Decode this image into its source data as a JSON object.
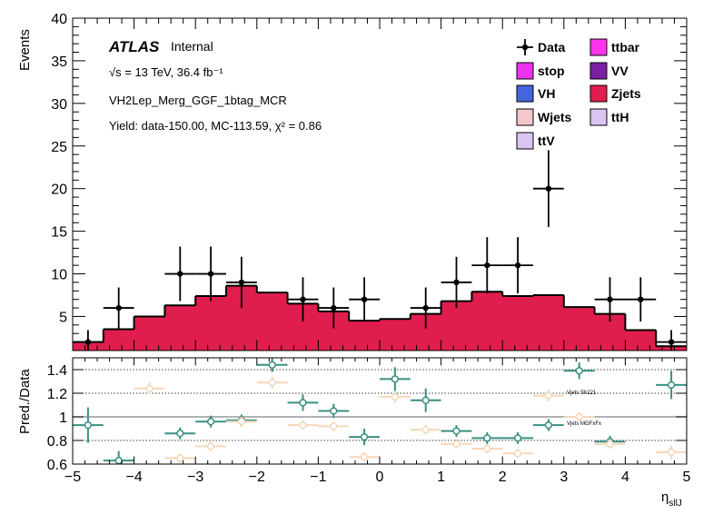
{
  "chart_data": [
    {
      "panel": "main",
      "type": "histogram",
      "ylabel": "Events",
      "ylim": [
        1,
        40
      ],
      "yticks": [
        5,
        10,
        15,
        20,
        25,
        30,
        35,
        40
      ],
      "xlim": [
        -5,
        5
      ],
      "bin_edges": [
        -5,
        -4.5,
        -4,
        -3.5,
        -3,
        -2.5,
        -2,
        -1.5,
        -1,
        -0.5,
        0,
        0.5,
        1,
        1.5,
        2,
        2.5,
        3,
        3.5,
        4,
        4.5,
        5
      ],
      "atlas_label": "ATLAS",
      "atlas_sublabel": "Internal",
      "energy_label": "√s = 13 TeV, 36.4 fb⁻¹",
      "region_label": "VH2Lep_Merg_GGF_1btag_MCR",
      "yield_label": "Yield: data-150.00, MC-113.59, χ² = 0.86",
      "legend": [
        {
          "label": "Data",
          "kind": "marker",
          "color": "#000000"
        },
        {
          "label": "ttbar",
          "kind": "fill",
          "color": "#ff33ee"
        },
        {
          "label": "stop",
          "kind": "fill",
          "color": "#ee33ee"
        },
        {
          "label": "VV",
          "kind": "fill",
          "color": "#7a1fa2"
        },
        {
          "label": "VH",
          "kind": "fill",
          "color": "#4466dd"
        },
        {
          "label": "Zjets",
          "kind": "fill",
          "color": "#e01e4d"
        },
        {
          "label": "Wjets",
          "kind": "fill",
          "color": "#f5c6cc"
        },
        {
          "label": "ttH",
          "kind": "fill",
          "color": "#dcc4f2"
        },
        {
          "label": "ttV",
          "kind": "fill",
          "color": "#dcc4f2"
        }
      ],
      "mc_total": [
        2.0,
        3.5,
        5.0,
        6.3,
        7.4,
        8.6,
        7.8,
        6.5,
        5.6,
        4.5,
        4.7,
        5.3,
        6.8,
        7.9,
        7.4,
        7.5,
        6.1,
        5.3,
        3.4,
        1.5
      ],
      "data": [
        {
          "x": -4.75,
          "y": 2,
          "err": 1.4
        },
        {
          "x": -4.25,
          "y": 6,
          "err": 2.4
        },
        {
          "x": -3.25,
          "y": 10,
          "err": 3.2
        },
        {
          "x": -2.75,
          "y": 10,
          "err": 3.2
        },
        {
          "x": -2.25,
          "y": 9,
          "err": 3.0
        },
        {
          "x": -1.25,
          "y": 7,
          "err": 2.6
        },
        {
          "x": -0.75,
          "y": 6,
          "err": 2.4
        },
        {
          "x": -0.25,
          "y": 7,
          "err": 2.6
        },
        {
          "x": 0.75,
          "y": 6,
          "err": 2.4
        },
        {
          "x": 1.25,
          "y": 9,
          "err": 3.0
        },
        {
          "x": 1.75,
          "y": 11,
          "err": 3.3
        },
        {
          "x": 2.25,
          "y": 11,
          "err": 3.3
        },
        {
          "x": 2.75,
          "y": 20,
          "err": 4.5
        },
        {
          "x": 3.75,
          "y": 7,
          "err": 2.6
        },
        {
          "x": 4.25,
          "y": 7,
          "err": 2.6
        },
        {
          "x": 4.75,
          "y": 2,
          "err": 1.4
        }
      ]
    },
    {
      "panel": "ratio",
      "type": "scatter",
      "ylabel": "Pred./Data",
      "xlabel": "η_sllJ",
      "xlabel_main": "η",
      "xlabel_sub": "sllJ",
      "ylim": [
        0.6,
        1.5
      ],
      "yticks": [
        "0.6",
        "0.8",
        "1",
        "1.2",
        "1.4"
      ],
      "xlim": [
        -5,
        5
      ],
      "xticks": [
        "−5",
        "−4",
        "−3",
        "−2",
        "−1",
        "0",
        "1",
        "2",
        "3",
        "4",
        "5"
      ],
      "reference_lines": [
        1.2,
        0.8,
        1.4
      ],
      "series": [
        {
          "name": "Vjets Sh221",
          "color": "#3a8f83",
          "points": [
            {
              "x": -4.75,
              "y": 0.93,
              "err": 0.15
            },
            {
              "x": -4.25,
              "y": 0.63,
              "err": 0.08
            },
            {
              "x": -3.25,
              "y": 0.86,
              "err": 0.05
            },
            {
              "x": -2.75,
              "y": 0.96,
              "err": 0.05
            },
            {
              "x": -2.25,
              "y": 0.97,
              "err": 0.05
            },
            {
              "x": -1.75,
              "y": 1.44,
              "err": 0.06
            },
            {
              "x": -1.25,
              "y": 1.12,
              "err": 0.07
            },
            {
              "x": -0.75,
              "y": 1.05,
              "err": 0.06
            },
            {
              "x": -0.25,
              "y": 0.83,
              "err": 0.07
            },
            {
              "x": 0.25,
              "y": 1.32,
              "err": 0.1
            },
            {
              "x": 0.75,
              "y": 1.14,
              "err": 0.1
            },
            {
              "x": 1.25,
              "y": 0.88,
              "err": 0.05
            },
            {
              "x": 1.75,
              "y": 0.82,
              "err": 0.05
            },
            {
              "x": 2.25,
              "y": 0.82,
              "err": 0.05
            },
            {
              "x": 2.75,
              "y": 0.93,
              "err": 0.05
            },
            {
              "x": 3.25,
              "y": 1.39,
              "err": 0.07
            },
            {
              "x": 3.75,
              "y": 0.79,
              "err": 0.05
            },
            {
              "x": 4.75,
              "y": 1.27,
              "err": 0.12
            }
          ]
        },
        {
          "name": "Vjets MGFxFx",
          "color": "#f5d7b8",
          "points": [
            {
              "x": -3.75,
              "y": 1.24,
              "err": 0.05
            },
            {
              "x": -3.25,
              "y": 0.65,
              "err": 0.04
            },
            {
              "x": -2.75,
              "y": 0.75,
              "err": 0.04
            },
            {
              "x": -2.25,
              "y": 0.96,
              "err": 0.04
            },
            {
              "x": -1.75,
              "y": 1.29,
              "err": 0.05
            },
            {
              "x": -1.25,
              "y": 0.93,
              "err": 0.04
            },
            {
              "x": -0.75,
              "y": 0.92,
              "err": 0.04
            },
            {
              "x": -0.25,
              "y": 0.66,
              "err": 0.04
            },
            {
              "x": 0.25,
              "y": 1.17,
              "err": 0.05
            },
            {
              "x": 0.75,
              "y": 0.89,
              "err": 0.04
            },
            {
              "x": 1.25,
              "y": 0.77,
              "err": 0.04
            },
            {
              "x": 1.75,
              "y": 0.73,
              "err": 0.04
            },
            {
              "x": 2.25,
              "y": 0.69,
              "err": 0.04
            },
            {
              "x": 2.75,
              "y": 1.18,
              "err": 0.05
            },
            {
              "x": 3.25,
              "y": 1.0,
              "err": 0.04
            },
            {
              "x": 3.75,
              "y": 0.77,
              "err": 0.04
            },
            {
              "x": 4.75,
              "y": 0.7,
              "err": 0.06
            }
          ]
        }
      ]
    }
  ]
}
